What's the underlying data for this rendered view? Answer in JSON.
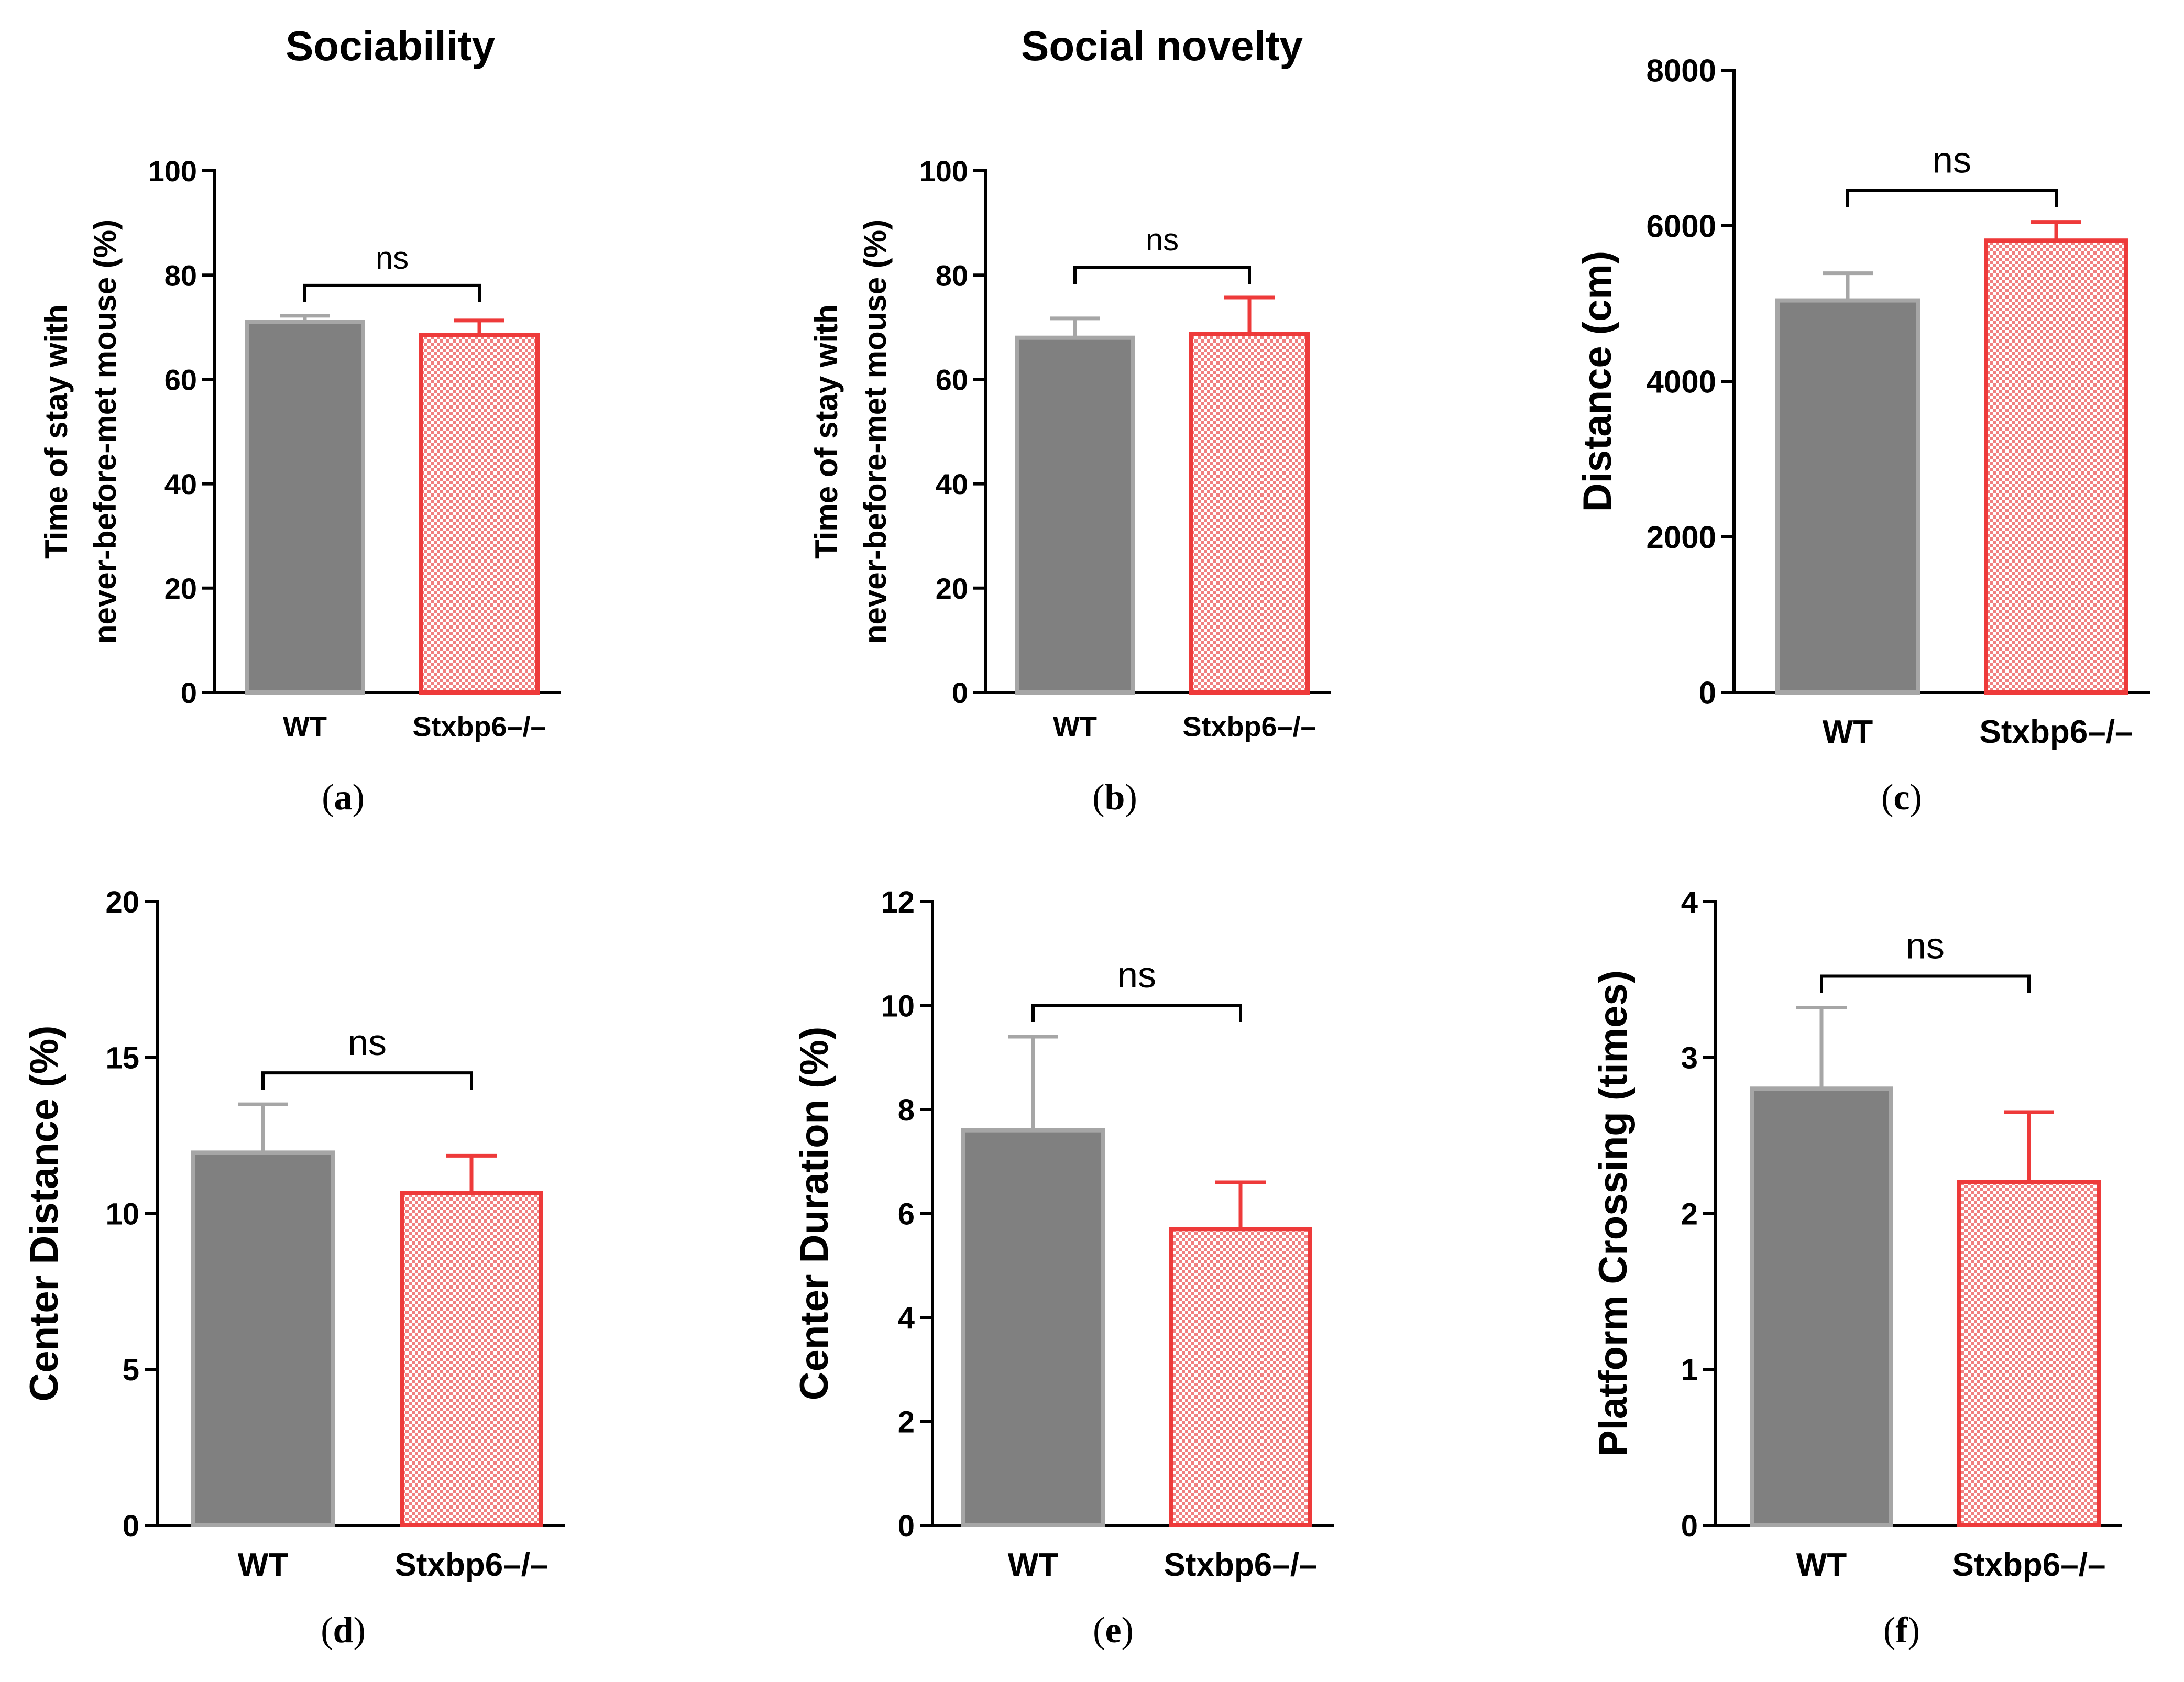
{
  "colors": {
    "wt_fill": "#808080",
    "wt_edge": "#a6a6a6",
    "ko_edge": "#ee3a3a",
    "ko_check": "#f08080",
    "axis": "#000000"
  },
  "series_names": [
    "WT",
    "Stxbp6–/–"
  ],
  "chart_data": [
    {
      "type": "bar",
      "title": "Sociability",
      "caption": "a",
      "categories": [
        "WT",
        "Stxbp6–/–"
      ],
      "values": [
        71,
        68.5
      ],
      "errors": [
        1.2,
        2.8
      ],
      "ylabel": [
        "Time of stay with",
        "never-before-met mouse (%)"
      ],
      "ylim": [
        0,
        100
      ],
      "yticks": [
        0,
        20,
        40,
        60,
        80,
        100
      ],
      "significance": "ns"
    },
    {
      "type": "bar",
      "title": "Social novelty",
      "caption": "b",
      "categories": [
        "WT",
        "Stxbp6–/–"
      ],
      "values": [
        68,
        68.7
      ],
      "errors": [
        3.7,
        7.0
      ],
      "ylabel": [
        "Time of stay with",
        "never-before-met mouse (%)"
      ],
      "ylim": [
        0,
        100
      ],
      "yticks": [
        0,
        20,
        40,
        60,
        80,
        100
      ],
      "significance": "ns"
    },
    {
      "type": "bar",
      "title": "",
      "caption": "c",
      "categories": [
        "WT",
        "Stxbp6–/–"
      ],
      "values": [
        5040,
        5810
      ],
      "errors": [
        350,
        240
      ],
      "ylabel": [
        "Distance (cm)"
      ],
      "ylim": [
        0,
        8000
      ],
      "yticks": [
        0,
        2000,
        4000,
        6000,
        8000
      ],
      "significance": "ns"
    },
    {
      "type": "bar",
      "title": "",
      "caption": "d",
      "categories": [
        "WT",
        "Stxbp6–/–"
      ],
      "values": [
        11.95,
        10.65
      ],
      "errors": [
        1.55,
        1.2
      ],
      "ylabel": [
        "Center Distance (%)"
      ],
      "ylim": [
        0,
        20
      ],
      "yticks": [
        0,
        5,
        10,
        15,
        20
      ],
      "significance": "ns"
    },
    {
      "type": "bar",
      "title": "",
      "caption": "e",
      "categories": [
        "WT",
        "Stxbp6–/–"
      ],
      "values": [
        7.6,
        5.7
      ],
      "errors": [
        1.8,
        0.9
      ],
      "ylabel": [
        "Center Duration (%)"
      ],
      "ylim": [
        0,
        12
      ],
      "yticks": [
        0,
        2,
        4,
        6,
        8,
        10,
        12
      ],
      "significance": "ns"
    },
    {
      "type": "bar",
      "title": "",
      "caption": "f",
      "categories": [
        "WT",
        "Stxbp6–/–"
      ],
      "values": [
        2.8,
        2.2
      ],
      "errors": [
        0.52,
        0.45
      ],
      "ylabel": [
        "Platform Crossing (times)"
      ],
      "ylim": [
        0,
        4
      ],
      "yticks": [
        0,
        1,
        2,
        3,
        4
      ],
      "significance": "ns"
    }
  ]
}
